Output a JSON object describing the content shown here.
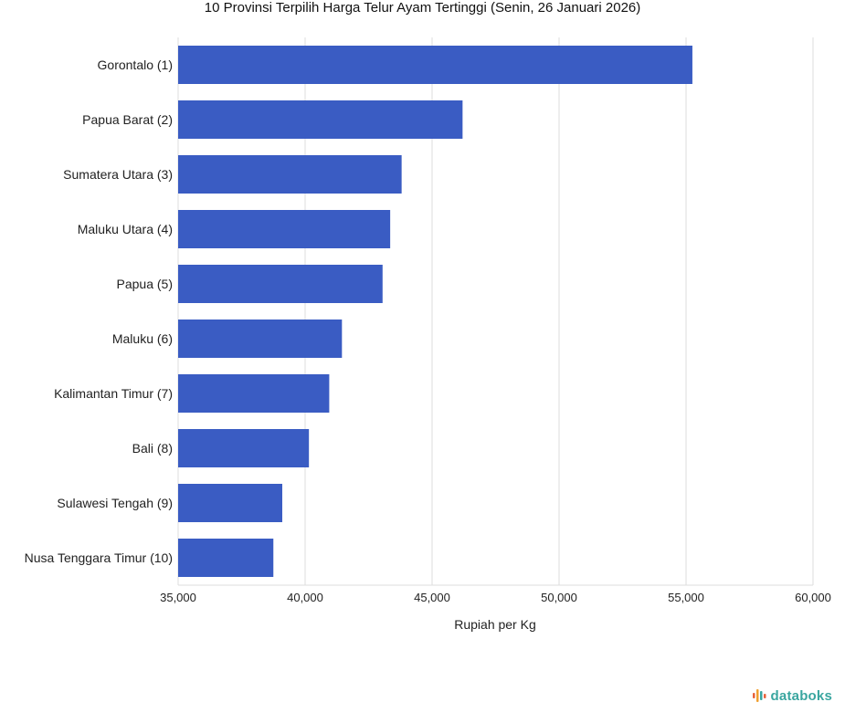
{
  "chart_data": {
    "type": "bar",
    "orientation": "horizontal",
    "title": "10 Provinsi Terpilih Harga Telur Ayam Tertinggi (Senin, 26 Januari 2026)",
    "categories": [
      "Gorontalo (1)",
      "Papua Barat (2)",
      "Sumatera Utara (3)",
      "Maluku Utara (4)",
      "Papua (5)",
      "Maluku (6)",
      "Kalimantan Timur (7)",
      "Bali (8)",
      "Sulawesi Tengah (9)",
      "Nusa Tenggara Timur (10)"
    ],
    "values": [
      55250,
      46200,
      43800,
      43350,
      43050,
      41450,
      40950,
      40150,
      39100,
      38750
    ],
    "xlabel": "Rupiah per Kg",
    "xlim": [
      35000,
      60000
    ],
    "xticks": [
      35000,
      40000,
      45000,
      50000,
      55000,
      60000
    ],
    "xtick_labels": [
      "35,000",
      "40,000",
      "45,000",
      "50,000",
      "55,000",
      "60,000"
    ],
    "grid": true,
    "bar_color": "#3a5cc3",
    "grid_color": "#dddddd"
  },
  "brand": {
    "name": "databoks",
    "color": "#3aa6a0",
    "icon_name": "databoks-bars-icon",
    "icon_colors": [
      "#e8623a",
      "#f0a030",
      "#3aa6a0"
    ]
  }
}
